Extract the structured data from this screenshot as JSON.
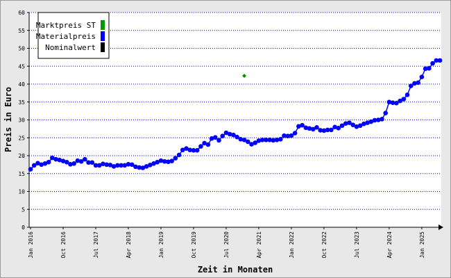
{
  "chart_data": {
    "type": "line",
    "x_label": "Zeit in Monaten",
    "y_label": "Preis in Euro",
    "categories": [
      "Jan 2016",
      null,
      null,
      null,
      null,
      null,
      null,
      null,
      null,
      "Oct 2016",
      null,
      null,
      null,
      null,
      null,
      null,
      null,
      null,
      "Jul 2017",
      null,
      null,
      null,
      null,
      null,
      null,
      null,
      null,
      "Apr 2018",
      null,
      null,
      null,
      null,
      null,
      null,
      null,
      null,
      "Jan 2019",
      null,
      null,
      null,
      null,
      null,
      null,
      null,
      null,
      "Oct 2019",
      null,
      null,
      null,
      null,
      null,
      null,
      null,
      null,
      "Jul 2020",
      null,
      null,
      null,
      null,
      null,
      null,
      null,
      null,
      "Apr 2021",
      null,
      null,
      null,
      null,
      null,
      null,
      null,
      null,
      "Jan 2022",
      null,
      null,
      null,
      null,
      null,
      null,
      null,
      null,
      "Oct 2022",
      null,
      null,
      null,
      null,
      null,
      null,
      null,
      null,
      "Jul 2023",
      null,
      null,
      null,
      null,
      null,
      null,
      null,
      null,
      "Apr 2024",
      null,
      null,
      null,
      null,
      null,
      null,
      null,
      null,
      "Jan 2025",
      null,
      null,
      null,
      null,
      null
    ],
    "series": [
      {
        "name": "Marktpreis ST",
        "color": "#009900",
        "values": [
          null,
          null,
          null,
          null,
          null,
          null,
          null,
          null,
          null,
          null,
          null,
          null,
          null,
          null,
          null,
          null,
          null,
          null,
          null,
          null,
          null,
          null,
          null,
          null,
          null,
          null,
          null,
          null,
          null,
          null,
          null,
          null,
          null,
          null,
          null,
          null,
          null,
          null,
          null,
          null,
          null,
          null,
          null,
          null,
          null,
          null,
          null,
          null,
          null,
          null,
          null,
          null,
          null,
          null,
          null,
          null,
          null,
          null,
          null,
          42.3,
          null,
          null,
          null,
          null,
          null,
          null,
          null,
          null,
          null,
          null,
          null,
          null,
          null,
          null,
          null,
          null,
          null,
          null,
          null,
          null,
          null,
          null,
          null,
          null,
          null,
          null,
          null,
          null,
          null,
          null,
          null,
          null,
          null,
          null,
          null,
          null,
          null,
          null,
          null,
          null,
          null,
          null,
          null,
          null,
          null,
          null,
          null,
          null,
          null,
          null,
          null,
          null,
          null,
          null
        ]
      },
      {
        "name": "Materialpreis",
        "color": "#0000ff",
        "values": [
          16.2,
          17.3,
          17.9,
          17.5,
          17.8,
          18.2,
          19.4,
          19.0,
          18.8,
          18.5,
          18.2,
          17.6,
          17.8,
          18.6,
          18.4,
          19.0,
          18.1,
          18.1,
          17.3,
          17.3,
          17.7,
          17.5,
          17.4,
          17.0,
          17.3,
          17.3,
          17.3,
          17.6,
          17.5,
          16.9,
          16.7,
          16.6,
          17.0,
          17.4,
          17.8,
          18.2,
          18.6,
          18.4,
          18.3,
          18.5,
          19.3,
          20.2,
          21.6,
          22.0,
          21.6,
          21.5,
          21.5,
          22.6,
          23.5,
          23.1,
          24.8,
          25.1,
          24.3,
          25.5,
          26.4,
          26.0,
          25.8,
          25.2,
          24.6,
          24.4,
          23.9,
          23.2,
          23.6,
          24.2,
          24.4,
          24.4,
          24.4,
          24.3,
          24.4,
          24.6,
          25.6,
          25.5,
          25.6,
          26.3,
          28.2,
          28.5,
          27.8,
          27.6,
          27.4,
          27.9,
          27.1,
          27.0,
          27.2,
          27.2,
          28.0,
          27.7,
          28.4,
          29.0,
          29.2,
          28.6,
          28.1,
          28.4,
          28.9,
          29.2,
          29.5,
          29.9,
          30.0,
          30.2,
          31.9,
          35.0,
          34.8,
          34.7,
          35.3,
          35.8,
          37.0,
          39.5,
          40.2,
          40.4,
          42.0,
          44.3,
          44.4,
          45.8,
          46.6,
          46.6
        ]
      },
      {
        "name": "Nominalwert",
        "color": "#000000",
        "values": [
          null,
          null,
          null,
          null,
          null,
          null,
          null,
          null,
          null,
          null,
          null,
          null,
          null,
          null,
          null,
          null,
          null,
          null,
          null,
          null,
          null,
          null,
          null,
          null,
          null,
          null,
          null,
          null,
          null,
          null,
          null,
          null,
          null,
          null,
          null,
          null,
          null,
          null,
          null,
          null,
          null,
          null,
          null,
          null,
          null,
          null,
          null,
          null,
          null,
          null,
          null,
          null,
          null,
          null,
          null,
          null,
          null,
          null,
          null,
          null,
          null,
          null,
          null,
          null,
          null,
          null,
          null,
          null,
          null,
          null,
          null,
          null,
          null,
          null,
          null,
          null,
          null,
          null,
          null,
          null,
          null,
          null,
          null,
          null,
          null,
          null,
          null,
          null,
          null,
          null,
          null,
          null,
          null,
          null,
          null,
          null,
          null,
          null,
          null,
          null,
          null,
          null,
          null,
          null,
          null,
          null,
          null,
          null,
          null,
          null,
          null,
          null,
          null,
          null
        ]
      }
    ],
    "ylim": [
      0,
      60
    ],
    "yticks": [
      0,
      5,
      10,
      15,
      20,
      25,
      30,
      35,
      40,
      45,
      50,
      55,
      60
    ],
    "grid": true,
    "legend": "upper left"
  }
}
